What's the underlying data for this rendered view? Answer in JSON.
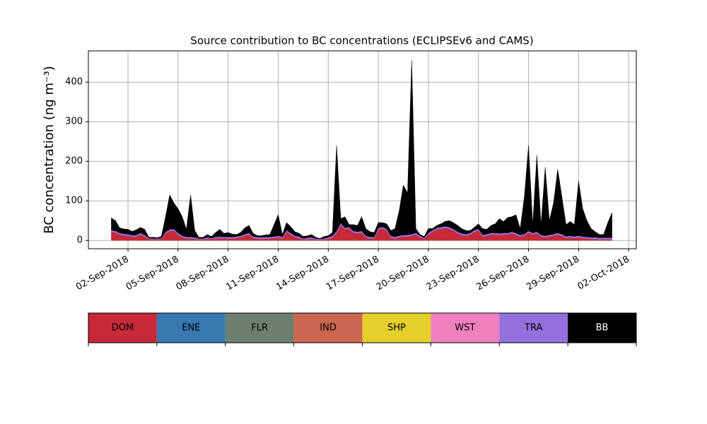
{
  "chart_data": {
    "type": "stacked_area",
    "title": "Source contribution to BC concentrations (ECLIPSEv6 and CAMS)",
    "y_label": "BC concentration (ng m⁻³)",
    "x": [
      "2018-09-01T00",
      "2018-09-01T06",
      "2018-09-01T12",
      "2018-09-01T18",
      "2018-09-02T00",
      "2018-09-02T06",
      "2018-09-02T12",
      "2018-09-02T18",
      "2018-09-03T00",
      "2018-09-03T06",
      "2018-09-03T12",
      "2018-09-03T18",
      "2018-09-04T00",
      "2018-09-04T06",
      "2018-09-04T12",
      "2018-09-04T18",
      "2018-09-05T00",
      "2018-09-05T06",
      "2018-09-05T12",
      "2018-09-05T18",
      "2018-09-06T00",
      "2018-09-06T06",
      "2018-09-06T12",
      "2018-09-06T18",
      "2018-09-07T00",
      "2018-09-07T06",
      "2018-09-07T12",
      "2018-09-07T18",
      "2018-09-08T00",
      "2018-09-08T06",
      "2018-09-08T12",
      "2018-09-08T18",
      "2018-09-09T00",
      "2018-09-09T06",
      "2018-09-09T12",
      "2018-09-09T18",
      "2018-09-10T00",
      "2018-09-10T06",
      "2018-09-10T12",
      "2018-09-10T18",
      "2018-09-11T00",
      "2018-09-11T06",
      "2018-09-11T12",
      "2018-09-11T18",
      "2018-09-12T00",
      "2018-09-12T06",
      "2018-09-12T12",
      "2018-09-12T18",
      "2018-09-13T00",
      "2018-09-13T06",
      "2018-09-13T12",
      "2018-09-13T18",
      "2018-09-14T00",
      "2018-09-14T06",
      "2018-09-14T12",
      "2018-09-14T18",
      "2018-09-15T00",
      "2018-09-15T06",
      "2018-09-15T12",
      "2018-09-15T18",
      "2018-09-16T00",
      "2018-09-16T06",
      "2018-09-16T12",
      "2018-09-16T18",
      "2018-09-17T00",
      "2018-09-17T06",
      "2018-09-17T12",
      "2018-09-17T18",
      "2018-09-18T00",
      "2018-09-18T06",
      "2018-09-18T12",
      "2018-09-18T18",
      "2018-09-19T00",
      "2018-09-19T06",
      "2018-09-19T12",
      "2018-09-19T18",
      "2018-09-20T00",
      "2018-09-20T06",
      "2018-09-20T12",
      "2018-09-20T18",
      "2018-09-21T00",
      "2018-09-21T06",
      "2018-09-21T12",
      "2018-09-21T18",
      "2018-09-22T00",
      "2018-09-22T06",
      "2018-09-22T12",
      "2018-09-22T18",
      "2018-09-23T00",
      "2018-09-23T06",
      "2018-09-23T12",
      "2018-09-23T18",
      "2018-09-24T00",
      "2018-09-24T06",
      "2018-09-24T12",
      "2018-09-24T18",
      "2018-09-25T00",
      "2018-09-25T06",
      "2018-09-25T12",
      "2018-09-25T18",
      "2018-09-26T00",
      "2018-09-26T06",
      "2018-09-26T12",
      "2018-09-26T18",
      "2018-09-27T00",
      "2018-09-27T06",
      "2018-09-27T12",
      "2018-09-27T18",
      "2018-09-28T00",
      "2018-09-28T06",
      "2018-09-28T12",
      "2018-09-28T18",
      "2018-09-29T00",
      "2018-09-29T06",
      "2018-09-29T12",
      "2018-09-29T18",
      "2018-09-30T00",
      "2018-09-30T06",
      "2018-09-30T12",
      "2018-09-30T18",
      "2018-10-01T00"
    ],
    "series": [
      {
        "name": "DOM",
        "color": "#c62a38",
        "values": [
          22,
          20,
          15,
          13,
          12,
          9,
          10,
          15,
          10,
          4,
          3,
          3,
          4,
          18,
          24,
          25,
          15,
          8,
          5,
          5,
          4,
          3,
          3,
          4,
          4,
          5,
          6,
          5,
          5,
          5,
          6,
          8,
          12,
          15,
          6,
          5,
          4,
          5,
          5,
          6,
          8,
          5,
          22,
          15,
          8,
          6,
          3,
          3,
          4,
          3,
          2,
          3,
          4,
          8,
          20,
          40,
          28,
          30,
          20,
          18,
          20,
          8,
          5,
          5,
          28,
          30,
          25,
          8,
          5,
          8,
          10,
          10,
          12,
          15,
          8,
          5,
          15,
          22,
          28,
          30,
          32,
          30,
          25,
          18,
          14,
          12,
          15,
          22,
          25,
          10,
          12,
          15,
          15,
          14,
          15,
          15,
          18,
          15,
          10,
          12,
          20,
          15,
          18,
          10,
          8,
          10,
          12,
          15,
          12,
          6,
          8,
          6,
          8,
          6,
          5,
          4,
          4,
          3,
          3,
          3,
          3
        ]
      },
      {
        "name": "TRA",
        "color": "#9370db",
        "values": [
          4,
          4,
          4,
          4,
          4,
          4,
          4,
          4,
          4,
          2,
          2,
          2,
          2,
          4,
          4,
          4,
          4,
          4,
          4,
          4,
          4,
          2,
          2,
          4,
          2,
          4,
          4,
          4,
          4,
          4,
          4,
          4,
          4,
          4,
          4,
          4,
          4,
          4,
          4,
          4,
          4,
          4,
          4,
          4,
          4,
          4,
          2,
          4,
          4,
          2,
          2,
          2,
          4,
          4,
          4,
          4,
          4,
          4,
          4,
          4,
          4,
          4,
          4,
          4,
          4,
          4,
          4,
          4,
          4,
          4,
          4,
          4,
          4,
          4,
          4,
          2,
          4,
          4,
          4,
          4,
          4,
          4,
          4,
          4,
          4,
          4,
          4,
          4,
          4,
          4,
          4,
          4,
          4,
          4,
          4,
          4,
          4,
          4,
          4,
          4,
          4,
          4,
          4,
          4,
          4,
          4,
          4,
          4,
          4,
          4,
          4,
          4,
          4,
          4,
          4,
          4,
          4,
          4,
          4,
          4,
          4
        ]
      },
      {
        "name": "BB",
        "color": "#000000",
        "values": [
          31,
          26,
          13,
          12,
          12,
          10,
          13,
          14,
          14,
          2,
          3,
          2,
          4,
          38,
          87,
          66,
          61,
          48,
          19,
          106,
          17,
          3,
          3,
          7,
          4,
          11,
          18,
          9,
          11,
          7,
          5,
          8,
          16,
          19,
          8,
          3,
          4,
          5,
          6,
          30,
          53,
          6,
          19,
          16,
          10,
          8,
          5,
          5,
          7,
          3,
          1,
          5,
          4,
          8,
          216,
          11,
          28,
          6,
          16,
          16,
          36,
          18,
          13,
          11,
          13,
          11,
          13,
          13,
          21,
          63,
          126,
          106,
          439,
          11,
          3,
          3,
          11,
          4,
          6,
          8,
          12,
          16,
          16,
          16,
          12,
          9,
          6,
          7,
          13,
          16,
          12,
          19,
          23,
          37,
          29,
          39,
          38,
          46,
          16,
          94,
          216,
          21,
          193,
          26,
          173,
          36,
          79,
          161,
          94,
          30,
          36,
          30,
          138,
          70,
          41,
          22,
          14,
          8,
          8,
          38,
          63
        ]
      }
    ],
    "legend": [
      {
        "name": "DOM",
        "color": "#c62a38"
      },
      {
        "name": "ENE",
        "color": "#3778b0"
      },
      {
        "name": "FLR",
        "color": "#6d7f6e"
      },
      {
        "name": "IND",
        "color": "#cc6650"
      },
      {
        "name": "SHP",
        "color": "#e5cf2b"
      },
      {
        "name": "WST",
        "color": "#f07fbf"
      },
      {
        "name": "TRA",
        "color": "#9370db"
      },
      {
        "name": "BB",
        "color": "#000000"
      }
    ],
    "xlim": [
      "2018-08-30T15",
      "2018-10-02T11"
    ],
    "xticks": [
      {
        "value": "2018-09-02T00",
        "label": "02-Sep-2018"
      },
      {
        "value": "2018-09-05T00",
        "label": "05-Sep-2018"
      },
      {
        "value": "2018-09-08T00",
        "label": "08-Sep-2018"
      },
      {
        "value": "2018-09-11T00",
        "label": "11-Sep-2018"
      },
      {
        "value": "2018-09-14T00",
        "label": "14-Sep-2018"
      },
      {
        "value": "2018-09-17T00",
        "label": "17-Sep-2018"
      },
      {
        "value": "2018-09-20T00",
        "label": "20-Sep-2018"
      },
      {
        "value": "2018-09-23T00",
        "label": "23-Sep-2018"
      },
      {
        "value": "2018-09-26T00",
        "label": "26-Sep-2018"
      },
      {
        "value": "2018-09-29T00",
        "label": "29-Sep-2018"
      },
      {
        "value": "2018-10-02T00",
        "label": "02-Oct-2018"
      }
    ],
    "ylim": [
      -21,
      479
    ],
    "yticks": [
      0,
      100,
      200,
      300,
      400
    ],
    "grid": true
  }
}
